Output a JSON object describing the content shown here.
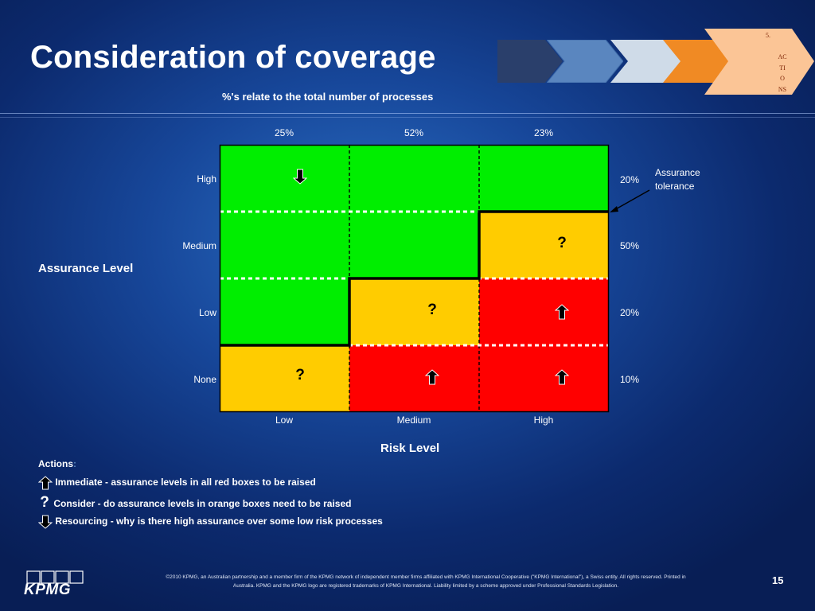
{
  "slide": {
    "title": "Consideration of coverage",
    "subtitle": "%'s relate to the total number of processes",
    "page_number": "15"
  },
  "chevrons": {
    "step5_lines": [
      "5.",
      "AC",
      "TI",
      "O",
      "NS"
    ],
    "colors": [
      "#2a3f6b",
      "#5a86bf",
      "#cfdbe8",
      "#f08a24",
      "#fbc596"
    ]
  },
  "matrix": {
    "column_percentages": [
      "25%",
      "52%",
      "23%"
    ],
    "row_labels": [
      "High",
      "Medium",
      "Low",
      "None"
    ],
    "column_labels": [
      "Low",
      "Medium",
      "High"
    ],
    "row_percentages": [
      "20%",
      "50%",
      "20%",
      "10%"
    ],
    "y_axis_title": "Assurance Level",
    "x_axis_title": "Risk Level",
    "tolerance_label_lines": [
      "Assurance",
      "tolerance"
    ],
    "cell_colors": [
      [
        "green",
        "green",
        "green"
      ],
      [
        "green",
        "green",
        "orange"
      ],
      [
        "green",
        "orange",
        "red"
      ],
      [
        "orange",
        "red",
        "red"
      ]
    ],
    "cell_markers": [
      [
        "down-arrow",
        "",
        ""
      ],
      [
        "",
        "",
        "question"
      ],
      [
        "",
        "question",
        "up-arrow"
      ],
      [
        "question",
        "up-arrow",
        "up-arrow"
      ]
    ],
    "question_mark": "?",
    "palette": {
      "green": "#00ee00",
      "orange": "#ffcc00",
      "red": "#ff0000"
    }
  },
  "legend": {
    "title": "Actions",
    "title_suffix": ":",
    "items": [
      {
        "icon": "up-arrow-icon",
        "text": "Immediate - assurance levels in all red boxes to be raised"
      },
      {
        "icon": "question-icon",
        "symbol": "?",
        "text": "Consider - do assurance levels in orange boxes need to be raised"
      },
      {
        "icon": "down-arrow-icon",
        "text": "Resourcing - why is there high assurance over some low risk processes"
      }
    ]
  },
  "footer": {
    "brand": "KPMG",
    "disclaimer_line1": "©2010 KPMG, an Australian partnership and a member firm of the KPMG network of independent member firms affiliated with KPMG International Cooperative (\"KPMG International\"), a Swiss entity. All rights reserved. Printed in",
    "disclaimer_line2": "Australia. KPMG and the KPMG logo are registered trademarks of KPMG International. Liability limited by a scheme approved under Professional Standards Legislation."
  }
}
